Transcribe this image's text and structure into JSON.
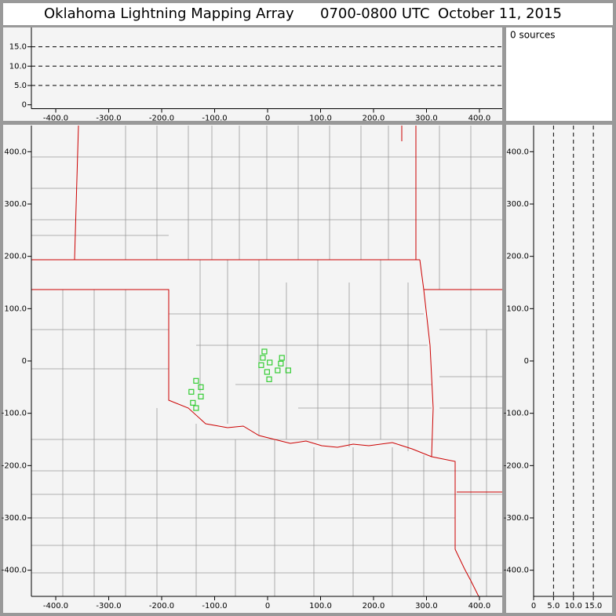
{
  "chart_data": [
    {
      "type": "scatter",
      "title": "Oklahoma Lightning Mapping Array",
      "subtitle": "0700-0800 UTC",
      "date": "October 11, 2015",
      "annotation": "0 sources",
      "xlim": [
        -446,
        443
      ],
      "ylim": [
        -1,
        20
      ],
      "xticks": [
        {
          "value": -400,
          "label": "-400.0"
        },
        {
          "value": -300,
          "label": "-300.0"
        },
        {
          "value": -200,
          "label": "-200.0"
        },
        {
          "value": -100,
          "label": "-100.0"
        },
        0,
        {
          "value": 100,
          "label": "100.0"
        },
        {
          "value": 200,
          "label": "200.0"
        },
        {
          "value": 300,
          "label": "300.0"
        },
        {
          "value": 400,
          "label": "400.0"
        }
      ],
      "yticks": [
        0,
        {
          "value": 5,
          "label": "5.0"
        },
        {
          "value": 10,
          "label": "10.0"
        },
        {
          "value": 15,
          "label": "15.0"
        }
      ],
      "grid": true,
      "series": []
    },
    {
      "type": "scatter",
      "xlim": [
        -446,
        443
      ],
      "ylim": [
        -450,
        450
      ],
      "xticks": [
        {
          "value": -400,
          "label": "-400.0"
        },
        {
          "value": -300,
          "label": "-300.0"
        },
        {
          "value": -200,
          "label": "-200.0"
        },
        {
          "value": -100,
          "label": "-100.0"
        },
        0,
        {
          "value": 100,
          "label": "100.0"
        },
        {
          "value": 200,
          "label": "200.0"
        },
        {
          "value": 300,
          "label": "300.0"
        },
        {
          "value": 400,
          "label": "400.0"
        }
      ],
      "yticks": [
        {
          "value": 400,
          "label": "400.0"
        },
        {
          "value": 300,
          "label": "300.0"
        },
        {
          "value": 200,
          "label": "200.0"
        },
        {
          "value": 100,
          "label": "100.0"
        },
        0,
        {
          "value": -100,
          "label": "-100.0"
        },
        {
          "value": -200,
          "label": "-200.0"
        },
        {
          "value": -300,
          "label": "-300.0"
        },
        {
          "value": -400,
          "label": "-400.0"
        }
      ],
      "grid": false,
      "series": [
        {
          "color": "#33cc33",
          "x": [
            -6,
            -9,
            4,
            -12,
            27,
            25,
            19,
            39,
            -1,
            3,
            -135,
            -126,
            -144,
            -126,
            -141,
            -135
          ],
          "y": [
            18,
            6,
            -3,
            -8,
            6,
            -5,
            -18,
            -18,
            -21,
            -35,
            -38,
            -50,
            -59,
            -68,
            -80,
            -90
          ]
        }
      ]
    },
    {
      "type": "scatter",
      "xlim": [
        0,
        19.7
      ],
      "ylim": [
        -450,
        450
      ],
      "xticks": [
        0,
        {
          "value": 5,
          "label": "5.0"
        },
        {
          "value": 10,
          "label": "10.0"
        },
        {
          "value": 15,
          "label": "15.0"
        }
      ],
      "yticks": [
        {
          "value": 400,
          "label": "400.0"
        },
        {
          "value": 300,
          "label": "300.0"
        },
        {
          "value": 200,
          "label": "200.0"
        },
        {
          "value": 100,
          "label": "100.0"
        },
        0,
        {
          "value": -100,
          "label": "-100.0"
        },
        {
          "value": -200,
          "label": "-200.0"
        },
        {
          "value": -300,
          "label": "-300.0"
        },
        {
          "value": -400,
          "label": "-400.0"
        }
      ],
      "xgrid": true,
      "series": []
    }
  ]
}
